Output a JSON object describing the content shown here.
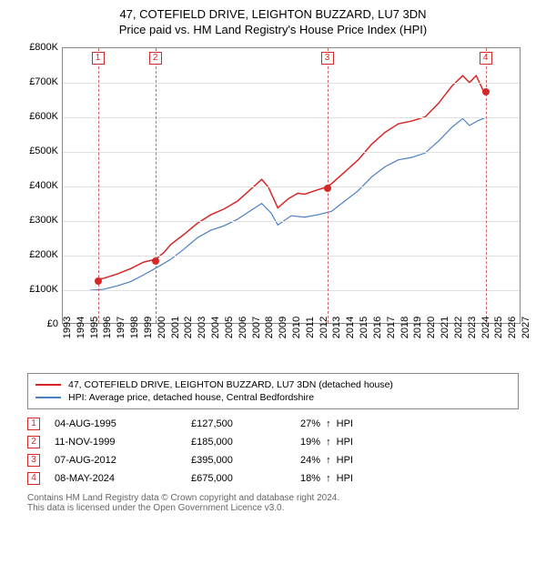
{
  "title_line1": "47, COTEFIELD DRIVE, LEIGHTON BUZZARD, LU7 3DN",
  "title_line2": "Price paid vs. HM Land Registry's House Price Index (HPI)",
  "chart": {
    "type": "line",
    "background_color": "#ffffff",
    "grid_color": "#e0e0e0",
    "border_color": "#888888",
    "x_years": [
      1993,
      1994,
      1995,
      1996,
      1997,
      1998,
      1999,
      2000,
      2001,
      2002,
      2003,
      2004,
      2005,
      2006,
      2007,
      2008,
      2009,
      2010,
      2011,
      2012,
      2013,
      2014,
      2015,
      2016,
      2017,
      2018,
      2019,
      2020,
      2021,
      2022,
      2023,
      2024,
      2025,
      2026,
      2027
    ],
    "xlim": [
      1993,
      2027
    ],
    "ylim": [
      0,
      800000
    ],
    "ytick_step": 100000,
    "ytick_labels": [
      "£0",
      "£100K",
      "£200K",
      "£300K",
      "£400K",
      "£500K",
      "£600K",
      "£700K",
      "£800K"
    ],
    "series": [
      {
        "name": "property",
        "color": "#d62728",
        "line_width": 1.5,
        "points": [
          [
            1995.6,
            127500
          ],
          [
            1996,
            130000
          ],
          [
            1997,
            142000
          ],
          [
            1998,
            158000
          ],
          [
            1999,
            177000
          ],
          [
            1999.86,
            185000
          ],
          [
            2000.5,
            205000
          ],
          [
            2001,
            228000
          ],
          [
            2002,
            258000
          ],
          [
            2003,
            290000
          ],
          [
            2004,
            315000
          ],
          [
            2005,
            332000
          ],
          [
            2006,
            355000
          ],
          [
            2007,
            390000
          ],
          [
            2007.8,
            418000
          ],
          [
            2008.3,
            395000
          ],
          [
            2009,
            335000
          ],
          [
            2009.8,
            362000
          ],
          [
            2010.5,
            378000
          ],
          [
            2011,
            375000
          ],
          [
            2012,
            388000
          ],
          [
            2012.6,
            395000
          ],
          [
            2013,
            405000
          ],
          [
            2014,
            440000
          ],
          [
            2015,
            475000
          ],
          [
            2016,
            520000
          ],
          [
            2017,
            555000
          ],
          [
            2018,
            580000
          ],
          [
            2019,
            588000
          ],
          [
            2020,
            600000
          ],
          [
            2021,
            640000
          ],
          [
            2022,
            690000
          ],
          [
            2022.8,
            720000
          ],
          [
            2023.3,
            700000
          ],
          [
            2023.8,
            720000
          ],
          [
            2024.35,
            675000
          ]
        ]
      },
      {
        "name": "hpi",
        "color": "#4a7fc1",
        "line_width": 1.2,
        "points": [
          [
            1995,
            95000
          ],
          [
            1996,
            98000
          ],
          [
            1997,
            108000
          ],
          [
            1998,
            120000
          ],
          [
            1999,
            140000
          ],
          [
            2000,
            162000
          ],
          [
            2001,
            185000
          ],
          [
            2002,
            215000
          ],
          [
            2003,
            248000
          ],
          [
            2004,
            270000
          ],
          [
            2005,
            283000
          ],
          [
            2006,
            302000
          ],
          [
            2007,
            328000
          ],
          [
            2007.8,
            348000
          ],
          [
            2008.5,
            320000
          ],
          [
            2009,
            285000
          ],
          [
            2010,
            312000
          ],
          [
            2011,
            308000
          ],
          [
            2012,
            315000
          ],
          [
            2013,
            325000
          ],
          [
            2014,
            355000
          ],
          [
            2015,
            385000
          ],
          [
            2016,
            425000
          ],
          [
            2017,
            455000
          ],
          [
            2018,
            475000
          ],
          [
            2019,
            482000
          ],
          [
            2020,
            495000
          ],
          [
            2021,
            530000
          ],
          [
            2022,
            570000
          ],
          [
            2022.8,
            595000
          ],
          [
            2023.3,
            575000
          ],
          [
            2024,
            590000
          ],
          [
            2024.5,
            598000
          ]
        ]
      }
    ],
    "sale_markers": [
      {
        "n": "1",
        "year": 1995.6,
        "price": 127500,
        "color": "#d62728"
      },
      {
        "n": "2",
        "year": 1999.86,
        "price": 185000,
        "color": "#d62728"
      },
      {
        "n": "3",
        "year": 2012.6,
        "price": 395000,
        "color": "#d62728"
      },
      {
        "n": "4",
        "year": 2024.35,
        "price": 675000,
        "color": "#d62728"
      }
    ],
    "vline_dash_color": "#cc6666"
  },
  "legend": {
    "items": [
      {
        "color": "#d62728",
        "label": "47, COTEFIELD DRIVE, LEIGHTON BUZZARD, LU7 3DN (detached house)"
      },
      {
        "color": "#4a7fc1",
        "label": "HPI: Average price, detached house, Central Bedfordshire"
      }
    ]
  },
  "sales_table": {
    "rows": [
      {
        "n": "1",
        "date": "04-AUG-1995",
        "price": "£127,500",
        "pct": "27%",
        "suffix": "HPI",
        "color": "#d62728"
      },
      {
        "n": "2",
        "date": "11-NOV-1999",
        "price": "£185,000",
        "pct": "19%",
        "suffix": "HPI",
        "color": "#d62728"
      },
      {
        "n": "3",
        "date": "07-AUG-2012",
        "price": "£395,000",
        "pct": "24%",
        "suffix": "HPI",
        "color": "#d62728"
      },
      {
        "n": "4",
        "date": "08-MAY-2024",
        "price": "£675,000",
        "pct": "18%",
        "suffix": "HPI",
        "color": "#d62728"
      }
    ]
  },
  "footer": {
    "line1": "Contains HM Land Registry data © Crown copyright and database right 2024.",
    "line2": "This data is licensed under the Open Government Licence v3.0."
  }
}
